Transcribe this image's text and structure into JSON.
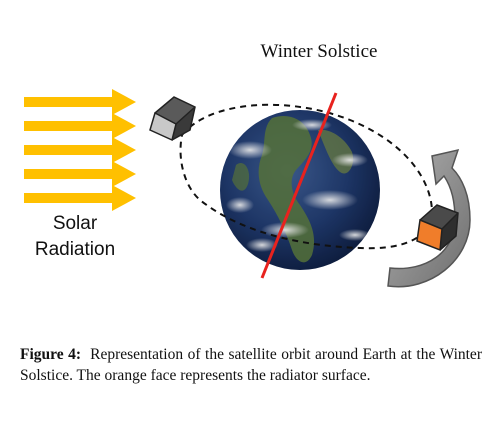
{
  "figure": {
    "title": "Winter Solstice",
    "solar_label_line1": "Solar",
    "solar_label_line2": "Radiation"
  },
  "caption": {
    "label": "Figure 4:",
    "text": "Representation of the satellite orbit around Earth at the Winter Solstice. The orange face represents the radiator surface."
  },
  "colors": {
    "arrow": "#FFC000",
    "axis": "#E8221E",
    "radiator": "#F07D2A",
    "cube_gray": "#C8C8C8",
    "rotation_arrow": "#8A8A8A"
  }
}
